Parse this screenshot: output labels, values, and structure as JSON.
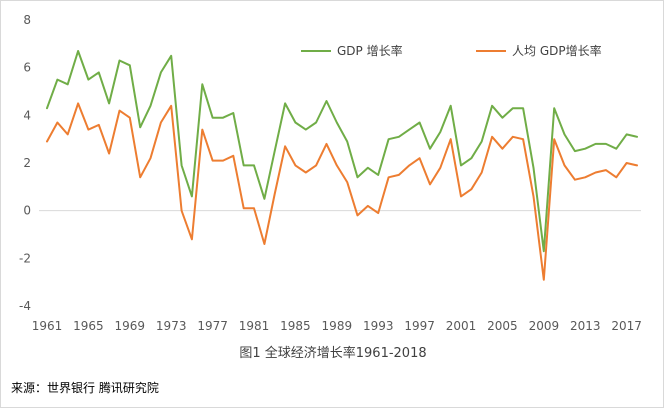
{
  "chart_data": {
    "type": "line",
    "title": "",
    "xlabel": "",
    "ylabel": "",
    "ylim": [
      -4,
      8
    ],
    "yticks": [
      -4,
      -2,
      0,
      2,
      4,
      6,
      8
    ],
    "xtick_labels": [
      "1961",
      "1965",
      "1969",
      "1973",
      "1977",
      "1981",
      "1985",
      "1989",
      "1993",
      "1997",
      "2001",
      "2005",
      "2009",
      "2013",
      "2017"
    ],
    "grid": false,
    "legend_placement": "top-right",
    "x": [
      1961,
      1962,
      1963,
      1964,
      1965,
      1966,
      1967,
      1968,
      1969,
      1970,
      1971,
      1972,
      1973,
      1974,
      1975,
      1976,
      1977,
      1978,
      1979,
      1980,
      1981,
      1982,
      1983,
      1984,
      1985,
      1986,
      1987,
      1988,
      1989,
      1990,
      1991,
      1992,
      1993,
      1994,
      1995,
      1996,
      1997,
      1998,
      1999,
      2000,
      2001,
      2002,
      2003,
      2004,
      2005,
      2006,
      2007,
      2008,
      2009,
      2010,
      2011,
      2012,
      2013,
      2014,
      2015,
      2016,
      2017,
      2018
    ],
    "series": [
      {
        "name": "GDP 增长率",
        "color": "#70ad47",
        "values": [
          4.3,
          5.5,
          5.3,
          6.7,
          5.5,
          5.8,
          4.5,
          6.3,
          6.1,
          3.5,
          4.4,
          5.8,
          6.5,
          1.9,
          0.6,
          5.3,
          3.9,
          3.9,
          4.1,
          1.9,
          1.9,
          0.5,
          2.5,
          4.5,
          3.7,
          3.4,
          3.7,
          4.6,
          3.7,
          2.9,
          1.4,
          1.8,
          1.5,
          3.0,
          3.1,
          3.4,
          3.7,
          2.6,
          3.3,
          4.4,
          1.9,
          2.2,
          2.9,
          4.4,
          3.9,
          4.3,
          4.3,
          1.8,
          -1.7,
          4.3,
          3.2,
          2.5,
          2.6,
          2.8,
          2.8,
          2.6,
          3.2,
          3.1
        ]
      },
      {
        "name": "人均 GDP增长率",
        "color": "#ed7d31",
        "values": [
          2.9,
          3.7,
          3.2,
          4.5,
          3.4,
          3.6,
          2.4,
          4.2,
          3.9,
          1.4,
          2.2,
          3.7,
          4.4,
          0.0,
          -1.2,
          3.4,
          2.1,
          2.1,
          2.3,
          0.1,
          0.1,
          -1.4,
          0.7,
          2.7,
          1.9,
          1.6,
          1.9,
          2.8,
          1.9,
          1.2,
          -0.2,
          0.2,
          -0.1,
          1.4,
          1.5,
          1.9,
          2.2,
          1.1,
          1.8,
          3.0,
          0.6,
          0.9,
          1.6,
          3.1,
          2.6,
          3.1,
          3.0,
          0.6,
          -2.9,
          3.0,
          1.9,
          1.3,
          1.4,
          1.6,
          1.7,
          1.4,
          2.0,
          1.9
        ]
      }
    ]
  },
  "caption": "图1  全球经济增长率1961-2018",
  "source": "来源：世界银行 腾讯研究院"
}
